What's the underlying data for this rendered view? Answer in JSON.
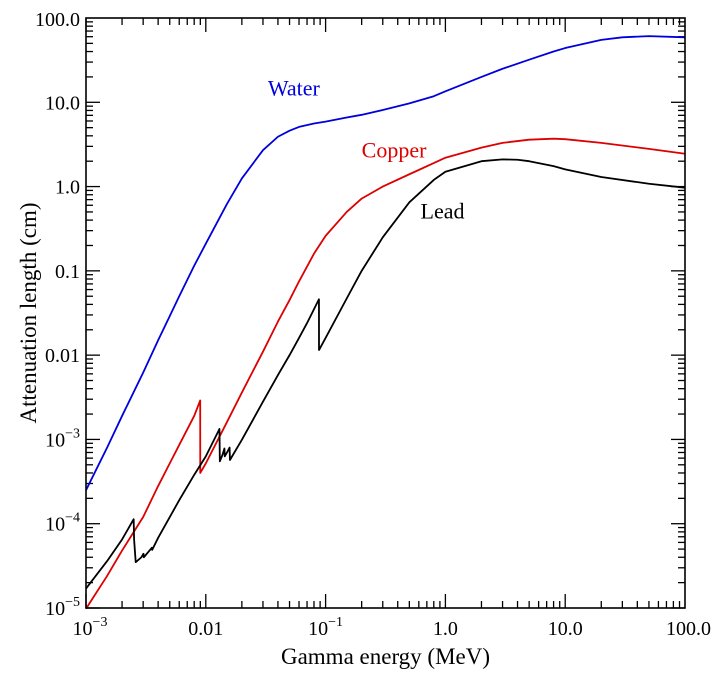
{
  "chart_data": {
    "type": "line",
    "xlabel": "Gamma energy (MeV)",
    "ylabel": "Attenuation length (cm)",
    "x_scale": "log",
    "y_scale": "log",
    "xlim": [
      0.001,
      100
    ],
    "ylim": [
      1e-05,
      100
    ],
    "grid": false,
    "x_ticks": [
      {
        "value": 0.001,
        "label": "10",
        "exp": "−3"
      },
      {
        "value": 0.01,
        "label": "0.01",
        "exp": ""
      },
      {
        "value": 0.1,
        "label": "10",
        "exp": "−1"
      },
      {
        "value": 1,
        "label": "1.0",
        "exp": ""
      },
      {
        "value": 10,
        "label": "10.0",
        "exp": ""
      },
      {
        "value": 100,
        "label": "100.0",
        "exp": ""
      }
    ],
    "y_ticks": [
      {
        "value": 1e-05,
        "label": "10",
        "exp": "−5"
      },
      {
        "value": 0.0001,
        "label": "10",
        "exp": "−4"
      },
      {
        "value": 0.001,
        "label": "10",
        "exp": "−3"
      },
      {
        "value": 0.01,
        "label": "0.01",
        "exp": ""
      },
      {
        "value": 0.1,
        "label": "0.1",
        "exp": ""
      },
      {
        "value": 1,
        "label": "1.0",
        "exp": ""
      },
      {
        "value": 10,
        "label": "10.0",
        "exp": ""
      },
      {
        "value": 100,
        "label": "100.0",
        "exp": ""
      }
    ],
    "series": [
      {
        "name": "Water",
        "color": "#0000dd",
        "label_at": [
          0.033,
          12
        ],
        "points": [
          [
            0.001,
            0.00025
          ],
          [
            0.0015,
            0.0008
          ],
          [
            0.002,
            0.0019
          ],
          [
            0.003,
            0.0062
          ],
          [
            0.004,
            0.015
          ],
          [
            0.005,
            0.029
          ],
          [
            0.006,
            0.05
          ],
          [
            0.008,
            0.115
          ],
          [
            0.01,
            0.21
          ],
          [
            0.015,
            0.62
          ],
          [
            0.02,
            1.25
          ],
          [
            0.03,
            2.7
          ],
          [
            0.04,
            3.9
          ],
          [
            0.05,
            4.6
          ],
          [
            0.06,
            5.1
          ],
          [
            0.08,
            5.6
          ],
          [
            0.1,
            5.9
          ],
          [
            0.15,
            6.6
          ],
          [
            0.2,
            7.1
          ],
          [
            0.3,
            8.1
          ],
          [
            0.5,
            9.7
          ],
          [
            0.8,
            11.8
          ],
          [
            1,
            13.5
          ],
          [
            2,
            20
          ],
          [
            3,
            25
          ],
          [
            5,
            32
          ],
          [
            8,
            40
          ],
          [
            10,
            44
          ],
          [
            20,
            55
          ],
          [
            30,
            59
          ],
          [
            50,
            61
          ],
          [
            100,
            59
          ]
        ]
      },
      {
        "name": "Copper",
        "color": "#dd0000",
        "label_at": [
          0.2,
          2.2
        ],
        "points": [
          [
            0.001,
            9.8e-06
          ],
          [
            0.0015,
            2.4e-05
          ],
          [
            0.002,
            4.8e-05
          ],
          [
            0.003,
            0.00012
          ],
          [
            0.004,
            0.00028
          ],
          [
            0.005,
            0.00052
          ],
          [
            0.006,
            0.00086
          ],
          [
            0.008,
            0.0019
          ],
          [
            0.00898,
            0.0029
          ],
          [
            0.00899,
            0.0004
          ],
          [
            0.01,
            0.00052
          ],
          [
            0.015,
            0.0016
          ],
          [
            0.02,
            0.0036
          ],
          [
            0.03,
            0.011
          ],
          [
            0.04,
            0.025
          ],
          [
            0.05,
            0.045
          ],
          [
            0.06,
            0.075
          ],
          [
            0.08,
            0.16
          ],
          [
            0.1,
            0.26
          ],
          [
            0.15,
            0.5
          ],
          [
            0.2,
            0.72
          ],
          [
            0.3,
            1.0
          ],
          [
            0.5,
            1.4
          ],
          [
            0.8,
            1.9
          ],
          [
            1,
            2.2
          ],
          [
            2,
            2.9
          ],
          [
            3,
            3.3
          ],
          [
            5,
            3.6
          ],
          [
            8,
            3.7
          ],
          [
            10,
            3.65
          ],
          [
            20,
            3.3
          ],
          [
            50,
            2.8
          ],
          [
            100,
            2.45
          ]
        ]
      },
      {
        "name": "Lead",
        "color": "#000000",
        "label_at": [
          0.62,
          0.42
        ],
        "points": [
          [
            0.001,
            1.7e-05
          ],
          [
            0.0015,
            3.6e-05
          ],
          [
            0.002,
            6.5e-05
          ],
          [
            0.0025,
            0.000113
          ],
          [
            0.00252,
            6.5e-05
          ],
          [
            0.0026,
            3.5e-05
          ],
          [
            0.0029,
            4e-05
          ],
          [
            0.00302,
            4.4e-05
          ],
          [
            0.00304,
            4e-05
          ],
          [
            0.0033,
            4.6e-05
          ],
          [
            0.00355,
            5.2e-05
          ],
          [
            0.00357,
            4.9e-05
          ],
          [
            0.004,
            6.8e-05
          ],
          [
            0.006,
            0.00019
          ],
          [
            0.008,
            0.00038
          ],
          [
            0.01,
            0.00063
          ],
          [
            0.013,
            0.00133
          ],
          [
            0.0131,
            0.00055
          ],
          [
            0.0138,
            0.00066
          ],
          [
            0.0143,
            0.00078
          ],
          [
            0.0144,
            0.00063
          ],
          [
            0.0152,
            0.00072
          ],
          [
            0.0158,
            0.0008
          ],
          [
            0.0159,
            0.00057
          ],
          [
            0.02,
            0.00099
          ],
          [
            0.03,
            0.0028
          ],
          [
            0.04,
            0.0058
          ],
          [
            0.05,
            0.01
          ],
          [
            0.06,
            0.016
          ],
          [
            0.07,
            0.024
          ],
          [
            0.088,
            0.046
          ],
          [
            0.0881,
            0.0115
          ],
          [
            0.1,
            0.016
          ],
          [
            0.15,
            0.047
          ],
          [
            0.2,
            0.1
          ],
          [
            0.3,
            0.25
          ],
          [
            0.5,
            0.65
          ],
          [
            0.8,
            1.2
          ],
          [
            1,
            1.5
          ],
          [
            2,
            2.0
          ],
          [
            3,
            2.1
          ],
          [
            4,
            2.08
          ],
          [
            5,
            2.0
          ],
          [
            8,
            1.75
          ],
          [
            10,
            1.6
          ],
          [
            20,
            1.3
          ],
          [
            50,
            1.08
          ],
          [
            100,
            0.97
          ]
        ]
      }
    ]
  }
}
